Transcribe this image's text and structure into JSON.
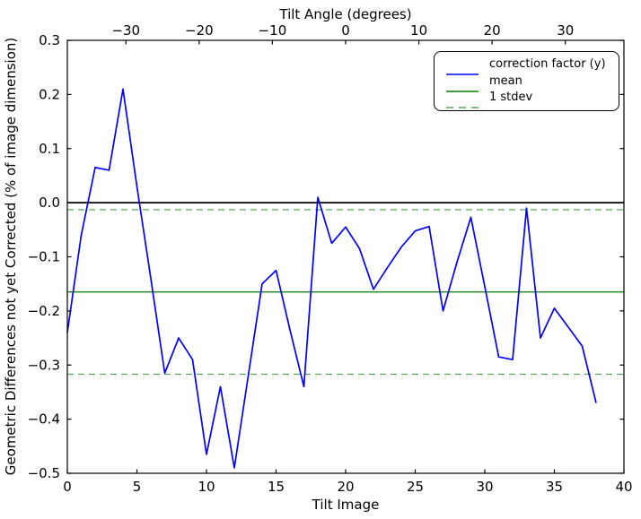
{
  "chart_data": {
    "type": "line",
    "title": "Tilt Angle (degrees)",
    "xlabel": "Tilt Image",
    "ylabel": "Geometric Differences not yet Corrected (% of image dimension)",
    "xlim": [
      0,
      40
    ],
    "ylim": [
      -0.5,
      0.3
    ],
    "grid": false,
    "legend_position": "upper right",
    "x": [
      0,
      1,
      2,
      3,
      4,
      5,
      6,
      7,
      8,
      9,
      10,
      11,
      12,
      13,
      14,
      15,
      16,
      17,
      18,
      19,
      20,
      21,
      22,
      23,
      24,
      25,
      26,
      27,
      28,
      29,
      30,
      31,
      32,
      33,
      34,
      35,
      36,
      37,
      38
    ],
    "series": [
      {
        "name": "correction factor (y)",
        "kind": "data-line",
        "color": "#0000ff",
        "dash": "solid",
        "values": [
          -0.24,
          -0.06,
          0.065,
          0.06,
          0.21,
          0.03,
          -0.14,
          -0.315,
          -0.25,
          -0.29,
          -0.465,
          -0.34,
          -0.49,
          -0.32,
          -0.15,
          -0.125,
          -0.235,
          -0.34,
          0.01,
          -0.075,
          -0.045,
          -0.085,
          -0.16,
          -0.12,
          -0.082,
          -0.052,
          -0.044,
          -0.2,
          -0.11,
          -0.027,
          -0.155,
          -0.285,
          -0.29,
          -0.01,
          -0.25,
          -0.195,
          -0.23,
          -0.265,
          -0.37
        ]
      },
      {
        "name": "mean",
        "kind": "hline",
        "color": "#008000",
        "dash": "solid",
        "values": [
          -0.165
        ]
      },
      {
        "name": "1 stdev",
        "kind": "hline",
        "color": "#4fae4f",
        "dash": "dashed",
        "values": [
          -0.013,
          -0.317
        ]
      }
    ],
    "zero_line": {
      "value": 0.0,
      "color": "#000000"
    },
    "x_ticks": [
      {
        "label": "0",
        "value": 0
      },
      {
        "label": "5",
        "value": 5
      },
      {
        "label": "10",
        "value": 10
      },
      {
        "label": "15",
        "value": 15
      },
      {
        "label": "20",
        "value": 20
      },
      {
        "label": "25",
        "value": 25
      },
      {
        "label": "30",
        "value": 30
      },
      {
        "label": "35",
        "value": 35
      },
      {
        "label": "40",
        "value": 40
      }
    ],
    "y_ticks": [
      {
        "label": "0.3",
        "value": 0.3
      },
      {
        "label": "0.2",
        "value": 0.2
      },
      {
        "label": "0.1",
        "value": 0.1
      },
      {
        "label": "0.0",
        "value": 0.0
      },
      {
        "label": "−0.1",
        "value": -0.1
      },
      {
        "label": "−0.2",
        "value": -0.2
      },
      {
        "label": "−0.3",
        "value": -0.3
      },
      {
        "label": "−0.4",
        "value": -0.4
      },
      {
        "label": "−0.5",
        "value": -0.5
      }
    ],
    "top_axis": {
      "label": "Tilt Angle (degrees)",
      "range": [
        -38,
        38
      ],
      "ticks": [
        {
          "label": "−30",
          "value": -30
        },
        {
          "label": "−20",
          "value": -20
        },
        {
          "label": "−10",
          "value": -10
        },
        {
          "label": "0",
          "value": 0
        },
        {
          "label": "10",
          "value": 10
        },
        {
          "label": "20",
          "value": 20
        },
        {
          "label": "30",
          "value": 30
        }
      ]
    },
    "legend": {
      "entries": [
        {
          "label": "correction factor (y)",
          "color": "#0000ff",
          "dash": "solid"
        },
        {
          "label": "mean",
          "color": "#008000",
          "dash": "solid"
        },
        {
          "label": "1 stdev",
          "color": "#4fae4f",
          "dash": "dashed"
        }
      ]
    }
  }
}
